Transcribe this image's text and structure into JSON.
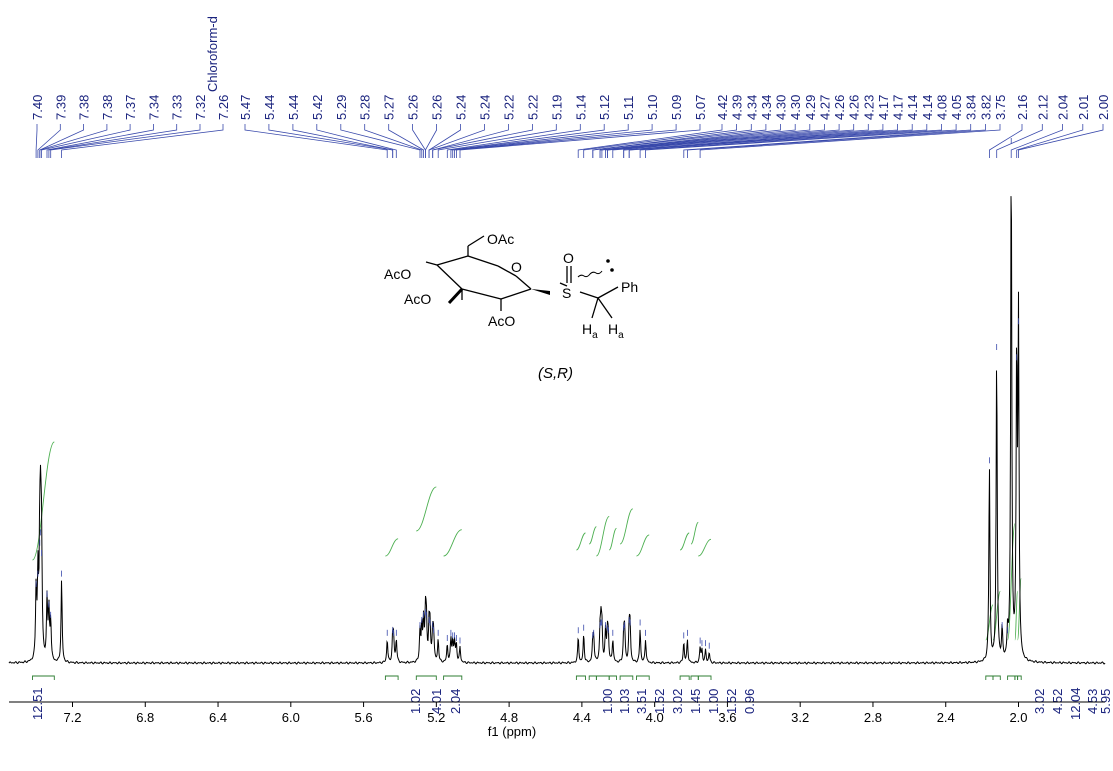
{
  "chart_data": {
    "type": "line",
    "xlabel": "f1 (ppm)",
    "xlim": [
      7.45,
      1.78
    ],
    "x_reversed": true,
    "x_ticks": [
      7.2,
      6.8,
      6.4,
      6.0,
      5.6,
      5.2,
      4.8,
      4.4,
      4.0,
      3.6,
      3.2,
      2.8,
      2.4,
      2.0
    ],
    "peak_labels": [
      "7.40",
      "7.39",
      "7.38",
      "7.38",
      "7.37",
      "7.34",
      "7.33",
      "7.32",
      "7.26",
      "5.47",
      "5.44",
      "5.44",
      "5.42",
      "5.29",
      "5.28",
      "5.27",
      "5.26",
      "5.26",
      "5.24",
      "5.24",
      "5.22",
      "5.22",
      "5.19",
      "5.14",
      "5.12",
      "5.11",
      "5.10",
      "5.09",
      "5.07",
      "4.42",
      "4.39",
      "4.34",
      "4.34",
      "4.30",
      "4.30",
      "4.29",
      "4.27",
      "4.26",
      "4.26",
      "4.23",
      "4.17",
      "4.17",
      "4.14",
      "4.14",
      "4.08",
      "4.05",
      "3.84",
      "3.82",
      "3.75",
      "2.16",
      "2.12",
      "2.04",
      "2.01",
      "2.00"
    ],
    "solvent_label": "Chloroform-d",
    "integrals": [
      {
        "value": "12.51",
        "from": 7.42,
        "to": 7.3
      },
      {
        "value": "1.02",
        "from": 5.48,
        "to": 5.41
      },
      {
        "value": "4.01",
        "from": 5.31,
        "to": 5.2
      },
      {
        "value": "2.04",
        "from": 5.16,
        "to": 5.06
      },
      {
        "value": "1.00",
        "from": 4.43,
        "to": 4.38
      },
      {
        "value": "1.03",
        "from": 4.36,
        "to": 4.32
      },
      {
        "value": "3.51",
        "from": 4.32,
        "to": 4.25
      },
      {
        "value": "1.52",
        "from": 4.25,
        "to": 4.21
      },
      {
        "value": "3.02",
        "from": 4.19,
        "to": 4.12
      },
      {
        "value": "1.45",
        "from": 4.1,
        "to": 4.03
      },
      {
        "value": "1.00",
        "from": 3.86,
        "to": 3.81
      },
      {
        "value": "1.52",
        "from": 3.8,
        "to": 3.76
      },
      {
        "value": "0.96",
        "from": 3.76,
        "to": 3.69
      },
      {
        "value": "3.02",
        "from": 2.18,
        "to": 2.14
      },
      {
        "value": "4.52",
        "from": 2.14,
        "to": 2.1
      },
      {
        "value": "12.04",
        "from": 2.06,
        "to": 2.02
      },
      {
        "value": "4.53",
        "from": 2.02,
        "to": 2.005
      },
      {
        "value": "5.95",
        "from": 2.005,
        "to": 1.985
      }
    ],
    "peaks": [
      {
        "ppm": 7.4,
        "h": 0.14
      },
      {
        "ppm": 7.39,
        "h": 0.16
      },
      {
        "ppm": 7.38,
        "h": 0.22
      },
      {
        "ppm": 7.375,
        "h": 0.24
      },
      {
        "ppm": 7.37,
        "h": 0.2
      },
      {
        "ppm": 7.34,
        "h": 0.12
      },
      {
        "ppm": 7.33,
        "h": 0.1
      },
      {
        "ppm": 7.32,
        "h": 0.08
      },
      {
        "ppm": 7.26,
        "h": 0.16
      },
      {
        "ppm": 5.47,
        "h": 0.045
      },
      {
        "ppm": 5.44,
        "h": 0.05
      },
      {
        "ppm": 5.435,
        "h": 0.045
      },
      {
        "ppm": 5.42,
        "h": 0.045
      },
      {
        "ppm": 5.29,
        "h": 0.06
      },
      {
        "ppm": 5.28,
        "h": 0.07
      },
      {
        "ppm": 5.27,
        "h": 0.08
      },
      {
        "ppm": 5.26,
        "h": 0.085
      },
      {
        "ppm": 5.255,
        "h": 0.08
      },
      {
        "ppm": 5.24,
        "h": 0.07
      },
      {
        "ppm": 5.235,
        "h": 0.065
      },
      {
        "ppm": 5.22,
        "h": 0.06
      },
      {
        "ppm": 5.215,
        "h": 0.05
      },
      {
        "ppm": 5.19,
        "h": 0.045
      },
      {
        "ppm": 5.14,
        "h": 0.035
      },
      {
        "ppm": 5.12,
        "h": 0.045
      },
      {
        "ppm": 5.11,
        "h": 0.04
      },
      {
        "ppm": 5.1,
        "h": 0.04
      },
      {
        "ppm": 5.09,
        "h": 0.035
      },
      {
        "ppm": 5.07,
        "h": 0.03
      },
      {
        "ppm": 4.42,
        "h": 0.05
      },
      {
        "ppm": 4.39,
        "h": 0.055
      },
      {
        "ppm": 4.34,
        "h": 0.04
      },
      {
        "ppm": 4.335,
        "h": 0.045
      },
      {
        "ppm": 4.3,
        "h": 0.06
      },
      {
        "ppm": 4.295,
        "h": 0.065
      },
      {
        "ppm": 4.29,
        "h": 0.065
      },
      {
        "ppm": 4.27,
        "h": 0.06
      },
      {
        "ppm": 4.26,
        "h": 0.055
      },
      {
        "ppm": 4.255,
        "h": 0.05
      },
      {
        "ppm": 4.23,
        "h": 0.045
      },
      {
        "ppm": 4.17,
        "h": 0.055
      },
      {
        "ppm": 4.165,
        "h": 0.06
      },
      {
        "ppm": 4.14,
        "h": 0.07
      },
      {
        "ppm": 4.135,
        "h": 0.065
      },
      {
        "ppm": 4.08,
        "h": 0.065
      },
      {
        "ppm": 4.05,
        "h": 0.045
      },
      {
        "ppm": 3.84,
        "h": 0.04
      },
      {
        "ppm": 3.82,
        "h": 0.045
      },
      {
        "ppm": 3.75,
        "h": 0.03
      },
      {
        "ppm": 3.74,
        "h": 0.025
      },
      {
        "ppm": 3.72,
        "h": 0.025
      },
      {
        "ppm": 3.7,
        "h": 0.02
      },
      {
        "ppm": 2.16,
        "h": 0.38
      },
      {
        "ppm": 2.12,
        "h": 0.6
      },
      {
        "ppm": 2.09,
        "h": 0.06
      },
      {
        "ppm": 2.06,
        "h": 0.05
      },
      {
        "ppm": 2.04,
        "h": 1.0
      },
      {
        "ppm": 2.01,
        "h": 0.58
      },
      {
        "ppm": 2.0,
        "h": 0.65
      }
    ]
  },
  "structure": {
    "labels": {
      "oac_top": "OAc",
      "aco_4": "AcO",
      "aco_3": "AcO",
      "aco_2": "AcO",
      "ring_o": "O",
      "sulfoxide_o": "O",
      "sulfur": "S",
      "phenyl": "Ph",
      "h": "H",
      "sub_a": "a"
    },
    "caption": "(S,R)"
  }
}
